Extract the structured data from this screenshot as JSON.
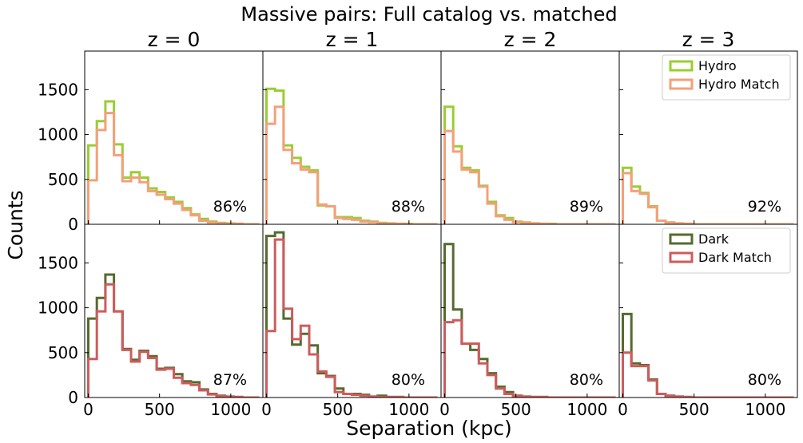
{
  "chart_data": {
    "type": "histogram-grid",
    "title": "Massive pairs: Full catalog vs. matched",
    "xlabel": "Separation (kpc)",
    "ylabel": "Counts",
    "xlim": [
      -25,
      1225
    ],
    "ylim": [
      0,
      1930
    ],
    "xticks": [
      0,
      500,
      1000
    ],
    "yticks": [
      0,
      500,
      1000,
      1500
    ],
    "bin_edges": [
      0,
      60,
      120,
      180,
      240,
      300,
      360,
      420,
      480,
      540,
      600,
      660,
      720,
      780,
      840,
      900,
      960,
      1020,
      1080,
      1140,
      1200
    ],
    "columns": [
      "z = 0",
      "z = 1",
      "z = 2",
      "z = 3"
    ],
    "colors": {
      "Hydro": "#9acd32",
      "Hydro Match": "#f4a07a",
      "Dark": "#556b2f",
      "Dark Match": "#cd5c5c"
    },
    "rows": [
      {
        "legend": [
          "Hydro",
          "Hydro Match"
        ],
        "panels": [
          {
            "percent": "86%",
            "series": [
              {
                "name": "Hydro",
                "values": [
                  880,
                  1150,
                  1370,
                  890,
                  520,
                  580,
                  520,
                  400,
                  360,
                  300,
                  250,
                  180,
                  110,
                  60,
                  30,
                  15,
                  10,
                  5,
                  0,
                  0
                ]
              },
              {
                "name": "Hydro Match",
                "values": [
                  490,
                  1050,
                  1240,
                  770,
                  480,
                  520,
                  470,
                  370,
                  330,
                  280,
                  230,
                  160,
                  100,
                  40,
                  20,
                  10,
                  5,
                  5,
                  0,
                  0
                ]
              }
            ]
          },
          {
            "percent": "88%",
            "series": [
              {
                "name": "Hydro",
                "values": [
                  1510,
                  1490,
                  880,
                  740,
                  640,
                  600,
                  210,
                  200,
                  80,
                  80,
                  70,
                  40,
                  30,
                  15,
                  10,
                  5,
                  5,
                  0,
                  0,
                  0
                ]
              },
              {
                "name": "Hydro Match",
                "values": [
                  1120,
                  1310,
                  830,
                  680,
                  610,
                  580,
                  220,
                  200,
                  70,
                  60,
                  50,
                  30,
                  25,
                  10,
                  5,
                  5,
                  0,
                  0,
                  0,
                  0
                ]
              }
            ]
          },
          {
            "percent": "89%",
            "series": [
              {
                "name": "Hydro",
                "values": [
                  1310,
                  870,
                  630,
                  600,
                  430,
                  250,
                  100,
                  70,
                  30,
                  20,
                  10,
                  5,
                  5,
                  0,
                  0,
                  0,
                  0,
                  0,
                  0,
                  0
                ]
              },
              {
                "name": "Hydro Match",
                "values": [
                  1040,
                  810,
                  610,
                  580,
                  420,
                  230,
                  90,
                  50,
                  25,
                  15,
                  10,
                  5,
                  0,
                  0,
                  0,
                  0,
                  0,
                  0,
                  0,
                  0
                ]
              }
            ]
          },
          {
            "percent": "92%",
            "series": [
              {
                "name": "Hydro",
                "values": [
                  630,
                  420,
                  350,
                  200,
                  40,
                  20,
                  10,
                  5,
                  0,
                  0,
                  0,
                  0,
                  0,
                  0,
                  0,
                  0,
                  0,
                  0,
                  0,
                  0
                ]
              },
              {
                "name": "Hydro Match",
                "values": [
                  570,
                  370,
                  340,
                  190,
                  40,
                  20,
                  10,
                  5,
                  0,
                  0,
                  0,
                  0,
                  0,
                  0,
                  0,
                  0,
                  0,
                  0,
                  0,
                  0
                ]
              }
            ]
          }
        ]
      },
      {
        "legend": [
          "Dark",
          "Dark Match"
        ],
        "panels": [
          {
            "percent": "87%",
            "series": [
              {
                "name": "Dark",
                "values": [
                  880,
                  1110,
                  1370,
                  960,
                  540,
                  420,
                  520,
                  460,
                  320,
                  330,
                  260,
                  180,
                  170,
                  90,
                  40,
                  20,
                  10,
                  5,
                  0,
                  0
                ]
              },
              {
                "name": "Dark Match",
                "values": [
                  430,
                  960,
                  1260,
                  960,
                  530,
                  400,
                  510,
                  440,
                  310,
                  320,
                  220,
                  160,
                  140,
                  80,
                  35,
                  15,
                  10,
                  5,
                  0,
                  0
                ]
              }
            ]
          },
          {
            "percent": "80%",
            "series": [
              {
                "name": "Dark",
                "values": [
                  1800,
                  1840,
                  880,
                  590,
                  710,
                  580,
                  270,
                  240,
                  100,
                  40,
                  40,
                  30,
                  10,
                  20,
                  5,
                  5,
                  0,
                  0,
                  0,
                  0
                ]
              },
              {
                "name": "Dark Match",
                "values": [
                  740,
                  1760,
                  990,
                  650,
                  800,
                  480,
                  290,
                  230,
                  60,
                  40,
                  30,
                  20,
                  10,
                  5,
                  5,
                  5,
                  0,
                  0,
                  0,
                  0
                ]
              }
            ]
          },
          {
            "percent": "80%",
            "series": [
              {
                "name": "Dark",
                "values": [
                  1710,
                  980,
                  600,
                  530,
                  430,
                  270,
                  120,
                  60,
                  20,
                  10,
                  5,
                  5,
                  0,
                  0,
                  0,
                  0,
                  0,
                  0,
                  0,
                  0
                ]
              },
              {
                "name": "Dark Match",
                "values": [
                  840,
                  860,
                  600,
                  600,
                  380,
                  250,
                  100,
                  40,
                  15,
                  10,
                  5,
                  5,
                  0,
                  0,
                  0,
                  0,
                  0,
                  0,
                  0,
                  0
                ]
              }
            ]
          },
          {
            "percent": "80%",
            "series": [
              {
                "name": "Dark",
                "values": [
                  930,
                  380,
                  360,
                  200,
                  40,
                  20,
                  10,
                  5,
                  0,
                  0,
                  0,
                  0,
                  0,
                  0,
                  0,
                  0,
                  0,
                  0,
                  0,
                  0
                ]
              },
              {
                "name": "Dark Match",
                "values": [
                  500,
                  350,
                  350,
                  190,
                  40,
                  20,
                  10,
                  5,
                  0,
                  0,
                  0,
                  0,
                  0,
                  0,
                  0,
                  0,
                  0,
                  0,
                  0,
                  0
                ]
              }
            ]
          }
        ]
      }
    ]
  }
}
